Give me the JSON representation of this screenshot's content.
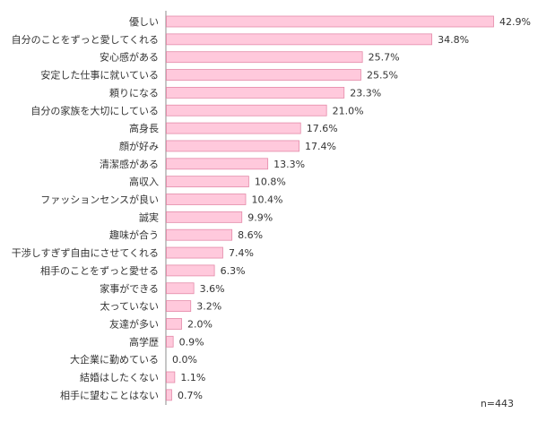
{
  "chart_data": {
    "type": "bar",
    "orientation": "horizontal",
    "categories": [
      "優しい",
      "自分のことをずっと愛してくれる",
      "安心感がある",
      "安定した仕事に就いている",
      "頼りになる",
      "自分の家族を大切にしている",
      "高身長",
      "顔が好み",
      "清潔感がある",
      "高収入",
      "ファッションセンスが良い",
      "誠実",
      "趣味が合う",
      "干渉しすぎず自由にさせてくれる",
      "相手のことをずっと愛せる",
      "家事ができる",
      "太っていない",
      "友達が多い",
      "高学歴",
      "大企業に勤めている",
      "結婚はしたくない",
      "相手に望むことはない"
    ],
    "values": [
      42.9,
      34.8,
      25.7,
      25.5,
      23.3,
      21.0,
      17.6,
      17.4,
      13.3,
      10.8,
      10.4,
      9.9,
      8.6,
      7.4,
      6.3,
      3.6,
      3.2,
      2.0,
      0.9,
      0.0,
      1.1,
      0.7
    ],
    "value_labels": [
      "42.9%",
      "34.8%",
      "25.7%",
      "25.5%",
      "23.3%",
      "21.0%",
      "17.6%",
      "17.4%",
      "13.3%",
      "10.8%",
      "10.4%",
      "9.9%",
      "8.6%",
      "7.4%",
      "6.3%",
      "3.6%",
      "3.2%",
      "2.0%",
      "0.9%",
      "0.0%",
      "1.1%",
      "0.7%"
    ],
    "note": "n=443",
    "xlim": [
      0,
      42.9
    ],
    "grid": false,
    "bar_fill": "#ffc9dc",
    "bar_stroke": "#e48aa9"
  }
}
